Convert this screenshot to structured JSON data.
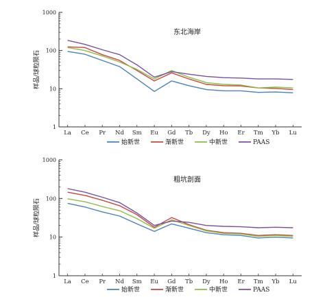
{
  "chart_data": [
    {
      "type": "line",
      "title": "东北海岸",
      "ylabel": "样品/球粒陨石",
      "xlabel": "",
      "yscale": "log",
      "ylim": [
        1,
        1000
      ],
      "ytick_labels": [
        "1",
        "10",
        "100",
        "1000"
      ],
      "categories": [
        "La",
        "Ce",
        "Pr",
        "Nd",
        "Sm",
        "Eu",
        "Gd",
        "Tb",
        "Dy",
        "Ho",
        "Er",
        "Tm",
        "Yb",
        "Lu"
      ],
      "series": [
        {
          "name": "始新世",
          "color": "#4a7fc1",
          "values": [
            95,
            80,
            55,
            38,
            18,
            8.5,
            16,
            12,
            9.5,
            8.8,
            8.8,
            8,
            8.2,
            7.8
          ]
        },
        {
          "name": "渐新世",
          "color": "#c8463c",
          "values": [
            125,
            120,
            78,
            55,
            30,
            16,
            26,
            18,
            13,
            12,
            11.8,
            10.5,
            10.2,
            9.5
          ]
        },
        {
          "name": "中新世",
          "color": "#8dbd45",
          "values": [
            120,
            100,
            72,
            50,
            32,
            18,
            30,
            20,
            14.5,
            13,
            12.5,
            10.5,
            11,
            10.5
          ]
        },
        {
          "name": "PAAS",
          "color": "#7a4fa0",
          "values": [
            185,
            145,
            105,
            78,
            42,
            20,
            28,
            24,
            21,
            19.5,
            19,
            18,
            18,
            17.5
          ]
        }
      ],
      "legend": "bottom"
    },
    {
      "type": "line",
      "title": "粗坑剖面",
      "ylabel": "样品/球粒陨石",
      "xlabel": "",
      "yscale": "log",
      "ylim": [
        1,
        1000
      ],
      "ytick_labels": [
        "1",
        "10",
        "100",
        "1000"
      ],
      "categories": [
        "La",
        "Ce",
        "Pr",
        "Nd",
        "Sm",
        "Eu",
        "Gd",
        "Tb",
        "Dy",
        "Ho",
        "Er",
        "Tm",
        "Yb",
        "Lu"
      ],
      "series": [
        {
          "name": "始新世",
          "color": "#4a7fc1",
          "values": [
            75,
            60,
            45,
            35,
            22,
            14,
            22,
            17,
            13,
            11.5,
            11,
            9.5,
            10,
            9.5
          ]
        },
        {
          "name": "渐新世",
          "color": "#c8463c",
          "values": [
            145,
            120,
            90,
            65,
            38,
            18,
            32,
            21,
            15,
            13,
            12.5,
            11,
            11.5,
            11
          ]
        },
        {
          "name": "中新世",
          "color": "#8dbd45",
          "values": [
            98,
            82,
            62,
            48,
            30,
            17,
            28,
            20,
            14.5,
            12.5,
            12,
            10.5,
            11,
            10.5
          ]
        },
        {
          "name": "PAAS",
          "color": "#7a4fa0",
          "values": [
            180,
            145,
            108,
            78,
            42,
            20,
            26,
            24,
            20,
            19,
            18.5,
            17.5,
            18,
            17.5
          ]
        }
      ],
      "legend": "bottom"
    }
  ]
}
